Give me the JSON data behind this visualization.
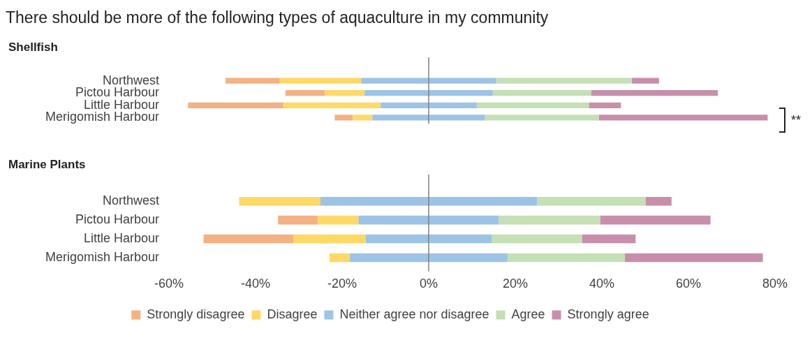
{
  "chart_data": [
    {
      "type": "bar",
      "orientation": "horizontal",
      "stacked": true,
      "title": "There should be more of the following types of aquaculture in my community",
      "subtitle": "Shellfish",
      "categories": [
        "Northwest",
        "Pictou Harbour",
        "Little Harbour",
        "Merigomish Harbour"
      ],
      "series": [
        {
          "color": "#9dc3e6",
          "values": [
            -15.6,
            -14.8,
            -11.1,
            -13.0
          ]
        },
        {
          "color": "#ffd966",
          "values": [
            -18.8,
            -9.2,
            -22.4,
            -4.5
          ]
        },
        {
          "color": "#f4b183",
          "values": [
            -12.5,
            -9.1,
            -22.1,
            -4.2
          ]
        },
        {
          "color": "#9dc3e6",
          "values": [
            15.6,
            14.8,
            11.1,
            13.0
          ]
        },
        {
          "color": "#c5e0b4",
          "values": [
            31.3,
            22.7,
            25.9,
            26.3
          ]
        },
        {
          "color": "#c78fab",
          "values": [
            6.3,
            29.3,
            7.4,
            39.0
          ]
        }
      ],
      "xlim": [
        -60,
        80
      ],
      "tick_labels": "y",
      "legend": false,
      "annotations": [
        "**"
      ]
    },
    {
      "type": "bar",
      "orientation": "horizontal",
      "stacked": true,
      "title": "Marine Plants",
      "categories": [
        "Northwest",
        "Pictou Harbour",
        "Little Harbour",
        "Merigomish Harbour"
      ],
      "series": [
        {
          "name": "Neither agree nor disagree",
          "color": "#9dc3e6",
          "values": [
            -25.0,
            -16.2,
            -14.6,
            -18.2
          ]
        },
        {
          "name": "Disagree",
          "color": "#ffd966",
          "values": [
            -18.8,
            -9.4,
            -16.6,
            -4.7
          ]
        },
        {
          "name": "Strongly disagree",
          "color": "#f4b183",
          "values": [
            0,
            -9.2,
            -20.8,
            0
          ]
        },
        {
          "color": "#9dc3e6",
          "values": [
            25.0,
            16.2,
            14.6,
            18.2
          ]
        },
        {
          "name": "Agree",
          "color": "#c5e0b4",
          "values": [
            25.1,
            23.4,
            20.8,
            27.1
          ]
        },
        {
          "name": "Strongly agree",
          "color": "#c78fab",
          "values": [
            6.0,
            25.5,
            12.4,
            31.9
          ]
        }
      ],
      "xlim": [
        -60,
        80
      ],
      "xticks": [
        {
          "value": -60,
          "label": "-60%"
        },
        {
          "value": -40,
          "label": "-40%"
        },
        {
          "value": -20,
          "label": "-20%"
        },
        {
          "value": 0,
          "label": "0%"
        },
        {
          "value": 20,
          "label": "20%"
        },
        {
          "value": 40,
          "label": "40%"
        },
        {
          "value": 60,
          "label": "60%"
        },
        {
          "value": 80,
          "label": "80%"
        }
      ],
      "legend": "bottom"
    }
  ]
}
